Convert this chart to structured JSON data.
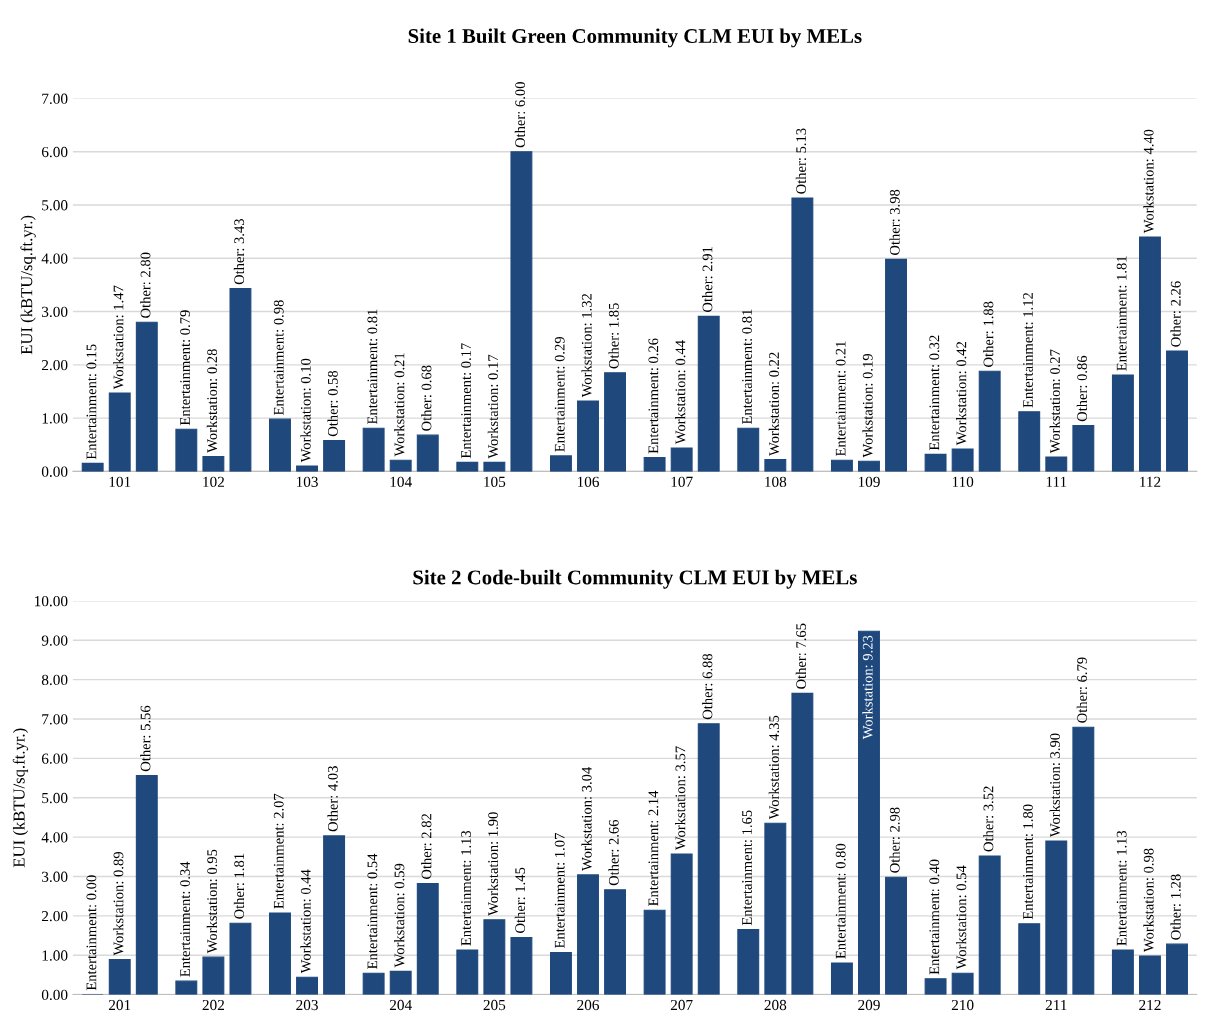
{
  "chart_data": [
    {
      "type": "bar",
      "title": "Site 1 Built Green Community CLM EUI by MELs",
      "ylabel": "EUI (kBTU/sq.ft.yr.)",
      "categories": [
        "101",
        "102",
        "103",
        "104",
        "105",
        "106",
        "107",
        "108",
        "109",
        "110",
        "111",
        "112"
      ],
      "series": [
        {
          "color": "#1f497d",
          "values": [
            0.15,
            0.79,
            0.98,
            0.81,
            0.17,
            0.29,
            0.26,
            0.81,
            0.21,
            0.32,
            1.12,
            1.81
          ],
          "value_labels": [
            "Entertainment: 0.15",
            "Entertainment: 0.79",
            "Entertainment: 0.98",
            "Entertainment: 0.81",
            "Entertainment: 0.17",
            "Entertainment: 0.29",
            "Entertainment: 0.26",
            "Entertainment: 0.81",
            "Entertainment: 0.21",
            "Entertainment: 0.32",
            "Entertainment: 1.12",
            "Entertainment: 1.81"
          ]
        },
        {
          "color": "#1f497d",
          "values": [
            1.47,
            0.28,
            0.1,
            0.21,
            0.17,
            1.32,
            0.44,
            0.22,
            0.19,
            0.42,
            0.27,
            4.4
          ],
          "value_labels": [
            "Workstation: 1.47",
            "Workstation: 0.28",
            "Workstation: 0.10",
            "Workstation: 0.21",
            "Workstation: 0.17",
            "Workstation: 1.32",
            "Workstation: 0.44",
            "Workstation: 0.22",
            "Workstation: 0.19",
            "Workstation: 0.42",
            "Workstation: 0.27",
            "Workstation: 4.40"
          ]
        },
        {
          "color": "#1f497d",
          "values": [
            2.8,
            3.43,
            0.58,
            0.68,
            6.0,
            1.85,
            2.91,
            5.13,
            3.98,
            1.88,
            0.86,
            2.26
          ],
          "value_labels": [
            "Other: 2.80",
            "Other: 3.43",
            "Other: 0.58",
            "Other: 0.68",
            "Other: 6.00",
            "Other: 1.85",
            "Other: 2.91",
            "Other: 5.13",
            "Other: 3.98",
            "Other: 1.88",
            "Other: 0.86",
            "Other: 2.26"
          ]
        }
      ],
      "ylim": [
        0,
        7
      ],
      "yticks": [
        {
          "value": 0,
          "label": "0.00"
        },
        {
          "value": 1,
          "label": "1.00"
        },
        {
          "value": 2,
          "label": "2.00"
        },
        {
          "value": 3,
          "label": "3.00"
        },
        {
          "value": 4,
          "label": "4.00"
        },
        {
          "value": 5,
          "label": "5.00"
        },
        {
          "value": 6,
          "label": "6.00"
        },
        {
          "value": 7,
          "label": "7.00"
        }
      ],
      "grid": "y"
    },
    {
      "type": "bar",
      "title": "Site 2 Code-built Community CLM EUI by MELs",
      "ylabel": "EUI (kBTU/sq.ft.yr.)",
      "categories": [
        "201",
        "202",
        "203",
        "204",
        "205",
        "206",
        "207",
        "208",
        "209",
        "210",
        "211",
        "212"
      ],
      "series": [
        {
          "color": "#1f497d",
          "values": [
            0.0,
            0.34,
            2.07,
            0.54,
            1.13,
            1.07,
            2.14,
            1.65,
            0.8,
            0.4,
            1.8,
            1.13
          ],
          "value_labels": [
            "Entertainment: 0.00",
            "Entertainment: 0.34",
            "Entertainment: 2.07",
            "Entertainment: 0.54",
            "Entertainment: 1.13",
            "Entertainment: 1.07",
            "Entertainment: 2.14",
            "Entertainment: 1.65",
            "Entertainment: 0.80",
            "Entertainment: 0.40",
            "Entertainment: 1.80",
            "Entertainment: 1.13"
          ]
        },
        {
          "color": "#1f497d",
          "values": [
            0.89,
            0.95,
            0.44,
            0.59,
            1.9,
            3.04,
            3.57,
            4.35,
            9.23,
            0.54,
            3.9,
            0.98
          ],
          "value_labels": [
            "Workstation: 0.89",
            "Workstation: 0.95",
            "Workstation: 0.44",
            "Workstation: 0.59",
            "Workstation: 1.90",
            "Workstation: 3.04",
            "Workstation: 3.57",
            "Workstation: 4.35",
            "Workstation: 9.23",
            "Workstation: 0.54",
            "Workstation: 3.90",
            "Workstation: 0.98"
          ]
        },
        {
          "color": "#1f497d",
          "values": [
            5.56,
            1.81,
            4.03,
            2.82,
            1.45,
            2.66,
            6.88,
            7.65,
            2.98,
            3.52,
            6.79,
            1.28
          ],
          "value_labels": [
            "Other: 5.56",
            "Other: 1.81",
            "Other: 4.03",
            "Other: 2.82",
            "Other: 1.45",
            "Other: 2.66",
            "Other: 6.88",
            "Other: 7.65",
            "Other: 2.98",
            "Other: 3.52",
            "Other: 6.79",
            "Other: 1.28"
          ]
        }
      ],
      "ylim": [
        0,
        10
      ],
      "yticks": [
        {
          "value": 0,
          "label": "0.00"
        },
        {
          "value": 1,
          "label": "1.00"
        },
        {
          "value": 2,
          "label": "2.00"
        },
        {
          "value": 3,
          "label": "3.00"
        },
        {
          "value": 4,
          "label": "4.00"
        },
        {
          "value": 5,
          "label": "5.00"
        },
        {
          "value": 6,
          "label": "6.00"
        },
        {
          "value": 7,
          "label": "7.00"
        },
        {
          "value": 8,
          "label": "8.00"
        },
        {
          "value": 9,
          "label": "9.00"
        },
        {
          "value": 10,
          "label": "10.00"
        }
      ],
      "grid": "y"
    }
  ]
}
